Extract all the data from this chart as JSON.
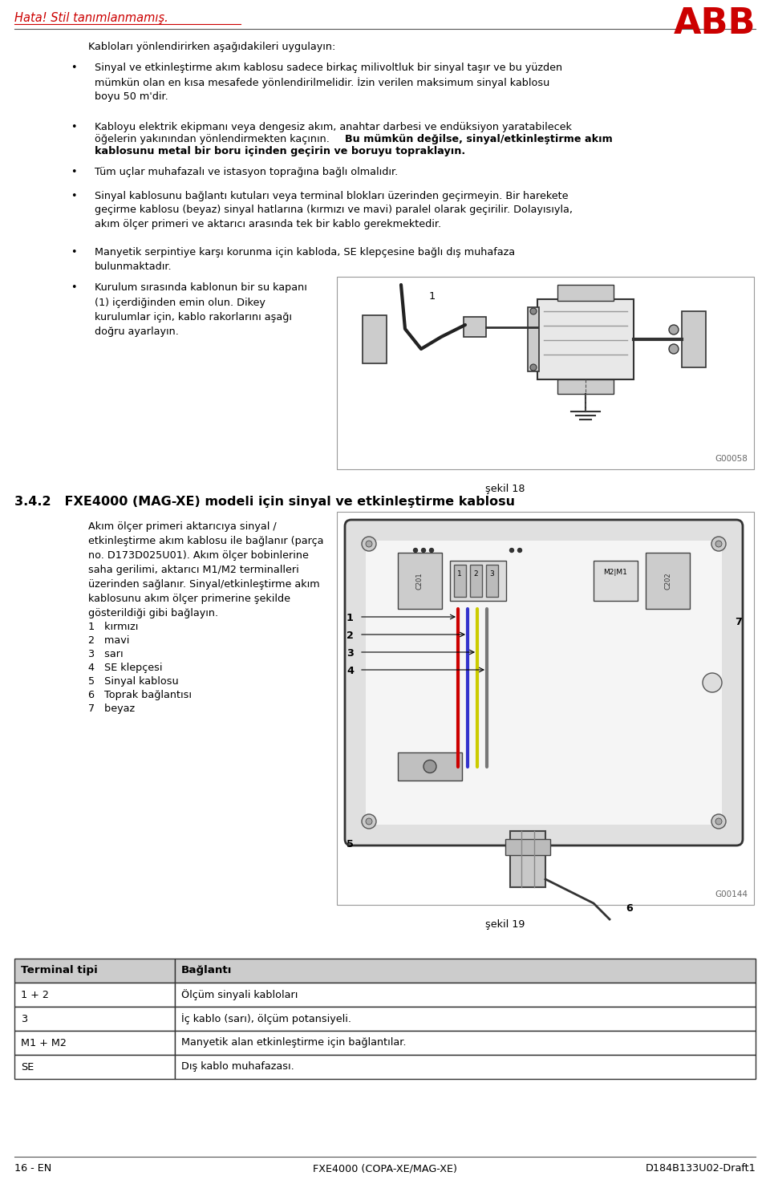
{
  "page_width": 9.6,
  "page_height": 14.76,
  "bg_color": "#ffffff",
  "header_error_text": "Hata! Stil tanımlanmamış.",
  "abb_logo_color": "#cc0000",
  "section_title": "Kabloları yönlendirirken aşağıdakileri uygulayın:",
  "bullet0": "Sinyal ve etkinleştirme akım kablosu sadece birkaç milivoltluk bir sinyal taşır ve bu yüzden\nmümkün olan en kısa mesafede yönlendirilmelidir. İzin verilen maksimum sinyal kablosu\nboyu 50 m'dir.",
  "bullet1_pre": "Kabloyu elektrik ekipmanı veya dengesiz akım, anahtar darbesi ve endüksiyon yaratabilecek\nöğelerin yakınından yönlendirmekten kaçının. ",
  "bullet1_bold": "Bu mümkün değilse, sinyal/etkinleştirme akım\nkablosunu metal bir boru içinden geçirin ve boruyu topraklayın.",
  "bullet2": "Tüm uçlar muhafazalı ve istasyon toprağına bağlı olmalıdır.",
  "bullet3": "Sinyal kablosunu bağlantı kutuları veya terminal blokları üzerinden geçirmeyin. Bir harekete\ngeçirme kablosu (beyaz) sinyal hatlarına (kırmızı ve mavi) paralel olarak geçirilir. Dolayısıyla,\nakım ölçer primeri ve aktarıcı arasında tek bir kablo gerekmektedir.",
  "bullet4": "Manyetik serpintiye karşı korunma için kabloda, SE klepçesine bağlı dış muhafaza\nbulunmaktadır.",
  "bullet5": "Kurulum sırasında kablonun bir su kapanı\n(1) içerdiğinden emin olun. Dikey\nkurulumlar için, kablo rakorlarını aşağı\ndoğru ayarlayın.",
  "figure18_label": "şekil 18",
  "figure18_code": "G00058",
  "section342_title": "3.4.2   FXE4000 (MAG-XE) modeli için sinyal ve etkinleştirme kablosu",
  "section342_text": "Akım ölçer primeri aktarıcıya sinyal /\netkinleştirme akım kablosu ile bağlanır (parça\nno. D173D025U01). Akım ölçer bobinlerine\nsaha gerilimi, aktarıcı M1/M2 terminalleri\nüzerinden sağlanır. Sinyal/etkinleştirme akım\nkablosunu akım ölçer primerine şekilde\ngösterildiği gibi bağlayın.",
  "legend1": "1   kırmızı",
  "legend2": "2   mavi",
  "legend3": "3   sarı",
  "legend4": "4   SE klepçesi",
  "legend5": "5   Sinyal kablosu",
  "legend6": "6   Toprak bağlantısı",
  "legend7": "7   beyaz",
  "figure19_label": "şekil 19",
  "figure19_code": "G00144",
  "table_headers": [
    "Terminal tipi",
    "Bağlantı"
  ],
  "table_rows": [
    [
      "1 + 2",
      "Ölçüm sinyali kabloları"
    ],
    [
      "3",
      "İç kablo (sarı), ölçüm potansiyeli."
    ],
    [
      "M1 + M2",
      "Manyetik alan etkinleştirme için bağlantılar."
    ],
    [
      "SE",
      "Dış kablo muhafazası."
    ]
  ],
  "footer_left": "16 - EN",
  "footer_center": "FXE4000 (COPA-XE/MAG-XE)",
  "footer_right": "D184B133U02-Draft1"
}
